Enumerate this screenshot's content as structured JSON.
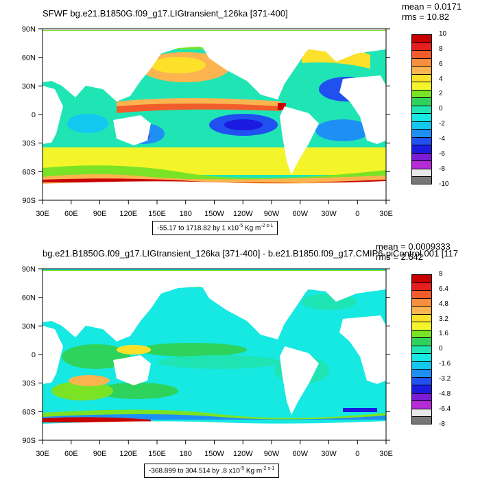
{
  "panels": [
    {
      "title": "SFWF bg.e21.B1850G.f09_g17.LIGtransient_126ka [371-400]",
      "stats": {
        "mean": "mean = 0.0171",
        "rms": "rms = 10.82"
      },
      "range_text": "-55.17 to 1718.82 by 1 x10",
      "range_exp": "-5",
      "range_unit": " Kg m",
      "range_unit_exp": "-2 s-1",
      "lat_labels": [
        "90N",
        "60N",
        "30N",
        "0",
        "30S",
        "60S",
        "90S"
      ],
      "lon_labels": [
        "30E",
        "60E",
        "90E",
        "120E",
        "150E",
        "180",
        "150W",
        "120W",
        "90W",
        "60W",
        "30W",
        "0",
        "30E"
      ],
      "colorbar_labels": [
        "10",
        "8",
        "6",
        "4",
        "2",
        "0",
        "-2",
        "-4",
        "-6",
        "-8",
        "-10"
      ],
      "colorbar_colors": [
        "#c80000",
        "#e61e1e",
        "#f25c2a",
        "#f7903c",
        "#fbb450",
        "#fde02a",
        "#f3f52a",
        "#7be325",
        "#2ed35c",
        "#1fe5b4",
        "#16e8e2",
        "#10c8f0",
        "#1e8ff5",
        "#2050f0",
        "#1a1ae0",
        "#7b1cd8",
        "#b62bd6",
        "#e7e7e7",
        "#777777"
      ]
    },
    {
      "title": "bg.e21.B1850G.f09_g17.LIGtransient_126ka [371-400] - b.e21.B1850.f09_g17.CMIP6-piControl.001 [117",
      "stats": {
        "mean": "mean = 0.0009333",
        "rms": "rms = 2.642"
      },
      "range_text": "-368.899 to 304.514 by .8 x10",
      "range_exp": "-5",
      "range_unit": " Kg m",
      "range_unit_exp": "-2 s-1",
      "lat_labels": [
        "90N",
        "60N",
        "30N",
        "0",
        "30S",
        "60S",
        "90S"
      ],
      "lon_labels": [
        "30E",
        "60E",
        "90E",
        "120E",
        "150E",
        "180",
        "150W",
        "120W",
        "90W",
        "60W",
        "30W",
        "0",
        "30E"
      ],
      "colorbar_labels": [
        "8",
        "6.4",
        "4.8",
        "3.2",
        "1.6",
        "0",
        "-1.6",
        "-3.2",
        "-4.8",
        "-6.4",
        "-8"
      ],
      "colorbar_colors": [
        "#c80000",
        "#e61e1e",
        "#f25c2a",
        "#f7903c",
        "#fbb450",
        "#fde02a",
        "#f3f52a",
        "#7be325",
        "#2ed35c",
        "#1fe5b4",
        "#16e8e2",
        "#10c8f0",
        "#1e8ff5",
        "#2050f0",
        "#1a1ae0",
        "#7b1cd8",
        "#b62bd6",
        "#e7e7e7",
        "#777777"
      ]
    }
  ]
}
